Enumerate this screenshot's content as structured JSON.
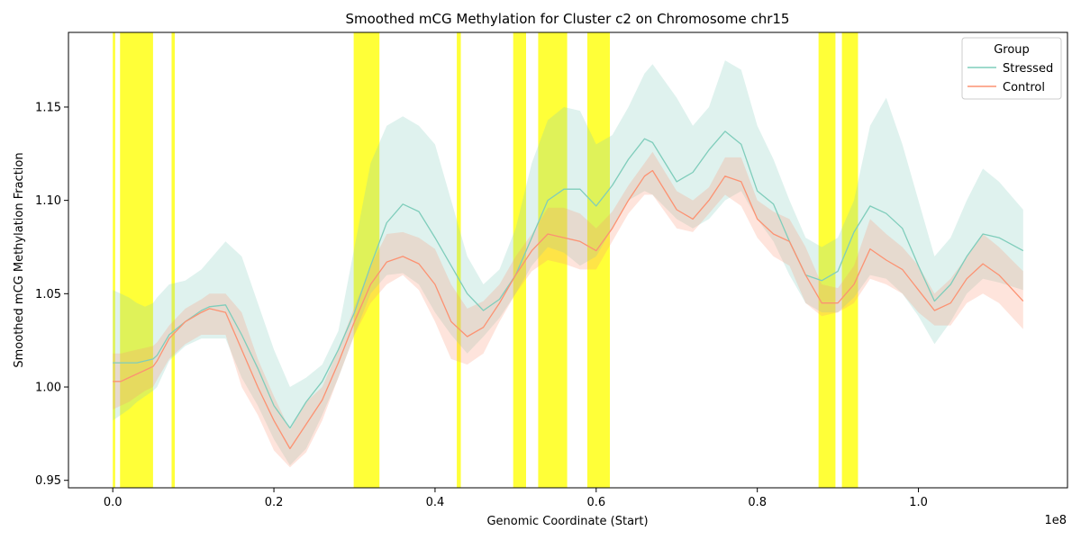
{
  "chart_data": {
    "type": "line",
    "title": "Smoothed mCG Methylation for Cluster c2 on Chromosome chr15",
    "xlabel": "Genomic Coordinate (Start)",
    "ylabel": "Smoothed mCG Methylation Fraction",
    "x_offset_label": "1e8",
    "xlim": [
      -0.055,
      1.185
    ],
    "ylim": [
      0.946,
      1.19
    ],
    "xticks": [
      0.0,
      0.2,
      0.4,
      0.6,
      0.8,
      1.0
    ],
    "xtick_labels": [
      "0.0",
      "0.2",
      "0.4",
      "0.6",
      "0.8",
      "1.0"
    ],
    "yticks": [
      0.95,
      1.0,
      1.05,
      1.1,
      1.15
    ],
    "ytick_labels": [
      "0.95",
      "1.00",
      "1.05",
      "1.10",
      "1.15"
    ],
    "grid": false,
    "legend": {
      "title": "Group",
      "placement": "top-right"
    },
    "highlight_color": "#ffff00",
    "highlight_regions": [
      [
        0.0,
        0.003
      ],
      [
        0.009,
        0.05
      ],
      [
        0.073,
        0.077
      ],
      [
        0.299,
        0.331
      ],
      [
        0.427,
        0.432
      ],
      [
        0.497,
        0.513
      ],
      [
        0.528,
        0.564
      ],
      [
        0.589,
        0.617
      ],
      [
        0.876,
        0.897
      ],
      [
        0.905,
        0.925
      ]
    ],
    "series": [
      {
        "name": "Stressed",
        "color": "#7fcdbb",
        "x": [
          0,
          0.01,
          0.02,
          0.03,
          0.04,
          0.05,
          0.055,
          0.07,
          0.09,
          0.11,
          0.12,
          0.14,
          0.16,
          0.18,
          0.2,
          0.22,
          0.24,
          0.26,
          0.28,
          0.3,
          0.32,
          0.34,
          0.36,
          0.38,
          0.4,
          0.42,
          0.44,
          0.46,
          0.48,
          0.5,
          0.52,
          0.54,
          0.56,
          0.58,
          0.6,
          0.62,
          0.64,
          0.66,
          0.67,
          0.7,
          0.72,
          0.74,
          0.76,
          0.78,
          0.8,
          0.82,
          0.84,
          0.86,
          0.88,
          0.9,
          0.92,
          0.94,
          0.96,
          0.98,
          1.0,
          1.02,
          1.04,
          1.06,
          1.08,
          1.1,
          1.13
        ],
        "values": [
          1.013,
          1.013,
          1.013,
          1.013,
          1.014,
          1.015,
          1.017,
          1.028,
          1.035,
          1.041,
          1.043,
          1.044,
          1.028,
          1.01,
          0.99,
          0.978,
          0.992,
          1.003,
          1.02,
          1.04,
          1.065,
          1.088,
          1.098,
          1.094,
          1.08,
          1.065,
          1.05,
          1.041,
          1.047,
          1.06,
          1.08,
          1.1,
          1.106,
          1.106,
          1.097,
          1.108,
          1.122,
          1.133,
          1.131,
          1.11,
          1.115,
          1.127,
          1.137,
          1.13,
          1.105,
          1.098,
          1.078,
          1.06,
          1.057,
          1.062,
          1.083,
          1.097,
          1.093,
          1.085,
          1.065,
          1.046,
          1.055,
          1.07,
          1.082,
          1.08,
          1.073
        ],
        "lower": [
          0.982,
          0.985,
          0.988,
          0.992,
          0.995,
          0.998,
          1.0,
          1.014,
          1.022,
          1.026,
          1.026,
          1.026,
          1.005,
          0.99,
          0.972,
          0.958,
          0.967,
          0.985,
          1.005,
          1.028,
          1.05,
          1.06,
          1.061,
          1.055,
          1.04,
          1.028,
          1.018,
          1.027,
          1.037,
          1.05,
          1.065,
          1.075,
          1.072,
          1.065,
          1.07,
          1.085,
          1.1,
          1.105,
          1.103,
          1.09,
          1.085,
          1.09,
          1.1,
          1.105,
          1.09,
          1.078,
          1.06,
          1.045,
          1.04,
          1.04,
          1.048,
          1.06,
          1.058,
          1.05,
          1.038,
          1.023,
          1.035,
          1.05,
          1.058,
          1.056,
          1.052
        ],
        "upper": [
          1.052,
          1.05,
          1.048,
          1.045,
          1.043,
          1.045,
          1.048,
          1.055,
          1.057,
          1.063,
          1.068,
          1.078,
          1.07,
          1.045,
          1.02,
          1.0,
          1.005,
          1.012,
          1.03,
          1.075,
          1.12,
          1.14,
          1.145,
          1.14,
          1.13,
          1.1,
          1.07,
          1.055,
          1.063,
          1.085,
          1.12,
          1.143,
          1.15,
          1.148,
          1.13,
          1.135,
          1.15,
          1.168,
          1.173,
          1.155,
          1.14,
          1.15,
          1.175,
          1.17,
          1.14,
          1.122,
          1.1,
          1.08,
          1.075,
          1.08,
          1.1,
          1.14,
          1.155,
          1.13,
          1.1,
          1.07,
          1.08,
          1.1,
          1.117,
          1.11,
          1.095
        ]
      },
      {
        "name": "Control",
        "color": "#fc9272",
        "x": [
          0,
          0.01,
          0.02,
          0.03,
          0.04,
          0.05,
          0.055,
          0.07,
          0.09,
          0.11,
          0.12,
          0.14,
          0.16,
          0.18,
          0.2,
          0.22,
          0.24,
          0.26,
          0.28,
          0.3,
          0.32,
          0.34,
          0.36,
          0.38,
          0.4,
          0.42,
          0.44,
          0.46,
          0.48,
          0.5,
          0.52,
          0.54,
          0.56,
          0.58,
          0.6,
          0.62,
          0.64,
          0.66,
          0.67,
          0.7,
          0.72,
          0.74,
          0.76,
          0.78,
          0.8,
          0.82,
          0.84,
          0.86,
          0.88,
          0.9,
          0.92,
          0.94,
          0.96,
          0.98,
          1.0,
          1.02,
          1.04,
          1.06,
          1.08,
          1.1,
          1.13
        ],
        "values": [
          1.003,
          1.003,
          1.005,
          1.007,
          1.009,
          1.011,
          1.014,
          1.026,
          1.035,
          1.04,
          1.042,
          1.04,
          1.02,
          1.0,
          0.982,
          0.967,
          0.98,
          0.993,
          1.013,
          1.035,
          1.055,
          1.067,
          1.07,
          1.066,
          1.055,
          1.035,
          1.027,
          1.032,
          1.045,
          1.06,
          1.073,
          1.082,
          1.08,
          1.078,
          1.073,
          1.085,
          1.1,
          1.113,
          1.116,
          1.095,
          1.09,
          1.1,
          1.113,
          1.11,
          1.09,
          1.082,
          1.078,
          1.06,
          1.045,
          1.045,
          1.055,
          1.074,
          1.068,
          1.063,
          1.052,
          1.041,
          1.045,
          1.058,
          1.066,
          1.06,
          1.046
        ],
        "lower": [
          0.988,
          0.99,
          0.992,
          0.995,
          0.998,
          1.0,
          1.004,
          1.015,
          1.023,
          1.028,
          1.028,
          1.028,
          1.0,
          0.985,
          0.966,
          0.957,
          0.965,
          0.982,
          1.005,
          1.028,
          1.045,
          1.055,
          1.06,
          1.052,
          1.035,
          1.015,
          1.012,
          1.018,
          1.035,
          1.05,
          1.062,
          1.068,
          1.066,
          1.063,
          1.063,
          1.078,
          1.093,
          1.103,
          1.103,
          1.085,
          1.083,
          1.093,
          1.103,
          1.097,
          1.08,
          1.07,
          1.065,
          1.045,
          1.038,
          1.04,
          1.045,
          1.058,
          1.055,
          1.05,
          1.04,
          1.033,
          1.033,
          1.045,
          1.05,
          1.045,
          1.031
        ],
        "upper": [
          1.018,
          1.018,
          1.019,
          1.02,
          1.021,
          1.022,
          1.024,
          1.033,
          1.042,
          1.047,
          1.05,
          1.05,
          1.04,
          1.015,
          0.995,
          0.977,
          0.992,
          1.0,
          1.02,
          1.043,
          1.065,
          1.082,
          1.083,
          1.08,
          1.074,
          1.055,
          1.042,
          1.046,
          1.055,
          1.07,
          1.082,
          1.096,
          1.096,
          1.093,
          1.085,
          1.094,
          1.108,
          1.12,
          1.126,
          1.105,
          1.1,
          1.107,
          1.123,
          1.123,
          1.1,
          1.094,
          1.09,
          1.075,
          1.055,
          1.053,
          1.065,
          1.09,
          1.082,
          1.075,
          1.065,
          1.05,
          1.058,
          1.07,
          1.082,
          1.075,
          1.062
        ]
      }
    ]
  }
}
